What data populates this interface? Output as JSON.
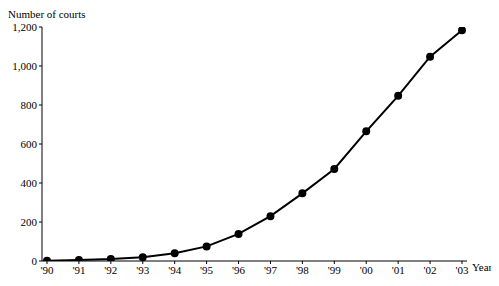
{
  "chart_data": {
    "type": "line",
    "y_label": "Number of courts",
    "x_label": "Year",
    "categories": [
      "'90",
      "'91",
      "'92",
      "'93",
      "'94",
      "'95",
      "'96",
      "'97",
      "'98",
      "'99",
      "'00",
      "'01",
      "'02",
      "'03"
    ],
    "values": [
      1,
      5,
      10,
      19,
      40,
      75,
      139,
      230,
      347,
      472,
      665,
      847,
      1048,
      1183
    ],
    "color": "#000000",
    "marker": "circle",
    "ylim": [
      0,
      1200
    ],
    "yticks": [
      0,
      200,
      400,
      600,
      800,
      {
        "value": 1000,
        "label": "1,000"
      },
      {
        "value": 1200,
        "label": "1,200"
      }
    ],
    "grid": false
  }
}
